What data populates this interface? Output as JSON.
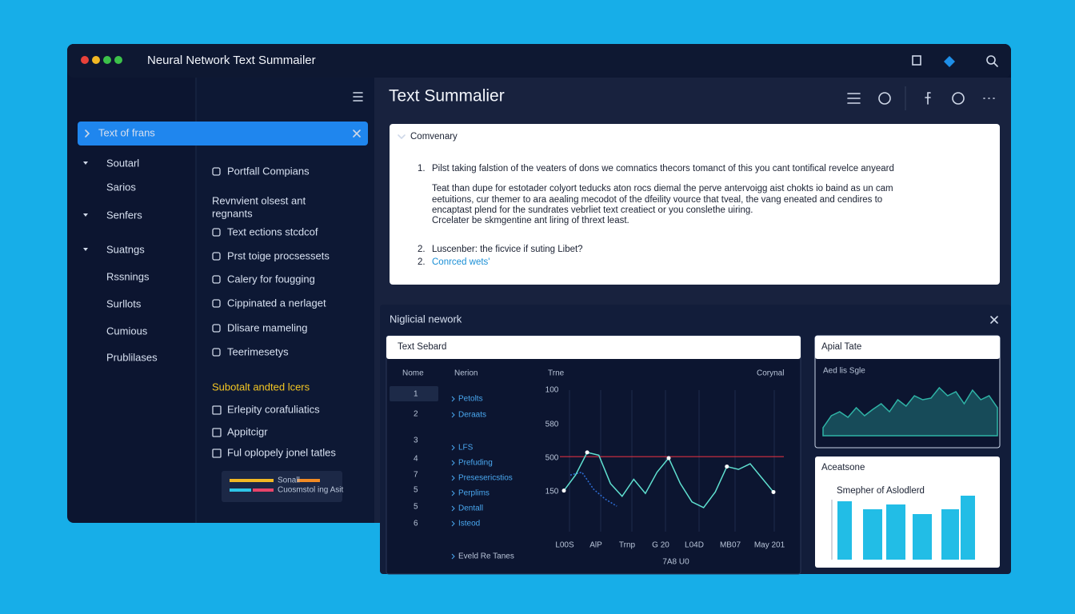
{
  "window": {
    "title": "Neural Network Text Summailer"
  },
  "sidebar": {
    "active": "Text of frans",
    "items": [
      "Soutarl",
      "Sarios",
      "Senfers",
      "Suatngs",
      "Rssnings",
      "Surllots",
      "Cumious",
      "Prublilases"
    ]
  },
  "middle": {
    "items": [
      "Portfall Compians",
      "Revnvient olsest ant",
      "regnants",
      "Text ections stcdcof",
      "Prst toige procsessets",
      "Calery for fougging",
      "Cippinated a nerlaget",
      "Dlisare mameling",
      "Teerimesetys"
    ],
    "section_title": "Subotalt andted lcers",
    "checks": [
      "Erlepity corafuliatics",
      "Appitcigr",
      "Ful oplopely jonel tatles"
    ],
    "legend": [
      "Sonall",
      "Cuosmstol ing Asit"
    ]
  },
  "main": {
    "title": "Text Summalier",
    "card": {
      "heading": "Comvenary",
      "list": [
        {
          "num": "1.",
          "text": "Pilst taking falstion of the veaters of dons we comnatics thecors tomanct of this you cant tontifical revelce anyeard"
        },
        {
          "num": "2.",
          "text": "Luscenber: the ficvice if suting Libet?"
        },
        {
          "num": "2.",
          "text": "Conrced wets'"
        }
      ],
      "paragraph": [
        "Teat than dupe for estotader colyort teducks aton rocs diemal the perve antervoigg aist chokts io baind as un cam",
        "eetuitions, cur themer to ara aealing mecodot of the dfeility vource that tveal, the vang eneated and cendires to",
        "encaptast plend for the sundrates vebrliet text creatiect or you conslethe uiring.",
        "Crcelater be skmgentine ant liring of thrext least."
      ]
    }
  },
  "panel": {
    "title": "Niglicial nework",
    "table": {
      "title": "Text Sebard",
      "columns": [
        "Nome",
        "Nerion",
        "Trne",
        "Corynal"
      ],
      "numbers": [
        "1",
        "2",
        "3",
        "4",
        "7",
        "5",
        "5",
        "6"
      ],
      "links": [
        "Petolts",
        "Deraats",
        "LFS",
        "Prefuding",
        "Presesericstios",
        "Perplims",
        "Dentall",
        "Isteod",
        "Eveld Re Tanes"
      ]
    },
    "line_chart": {
      "type": "line",
      "ytick_labels": [
        "100",
        "580",
        "500",
        "150"
      ],
      "xtick_labels": [
        "L00S",
        "AlP",
        "Trnp",
        "G 20",
        "L04D",
        "MB07",
        "May 201"
      ],
      "x_label": "7A8 U0",
      "threshold": 53,
      "series": [
        {
          "color": "#5fe0d0",
          "values": [
            29,
            40,
            56,
            54,
            34,
            25,
            37,
            27,
            42,
            52,
            34,
            21,
            17,
            28,
            46,
            44,
            48,
            38,
            28
          ]
        },
        {
          "color": "#2f6fd8",
          "values": [
            40,
            42,
            30,
            23,
            18
          ]
        }
      ]
    },
    "area_card": {
      "type": "area",
      "title": "Apial Tate",
      "subtitle": "Aed lis Sgle",
      "color": "#2fb3a6",
      "values": [
        10,
        25,
        30,
        23,
        35,
        25,
        33,
        40,
        30,
        45,
        37,
        50,
        45,
        47,
        60,
        50,
        55,
        40,
        57,
        45,
        50,
        35
      ]
    },
    "bar_card": {
      "type": "bar",
      "title": "Aceatsone",
      "subtitle": "Smepher of Aslodlerd",
      "color": "#22bde6",
      "values": [
        73,
        63,
        69,
        57,
        63,
        80
      ]
    }
  }
}
